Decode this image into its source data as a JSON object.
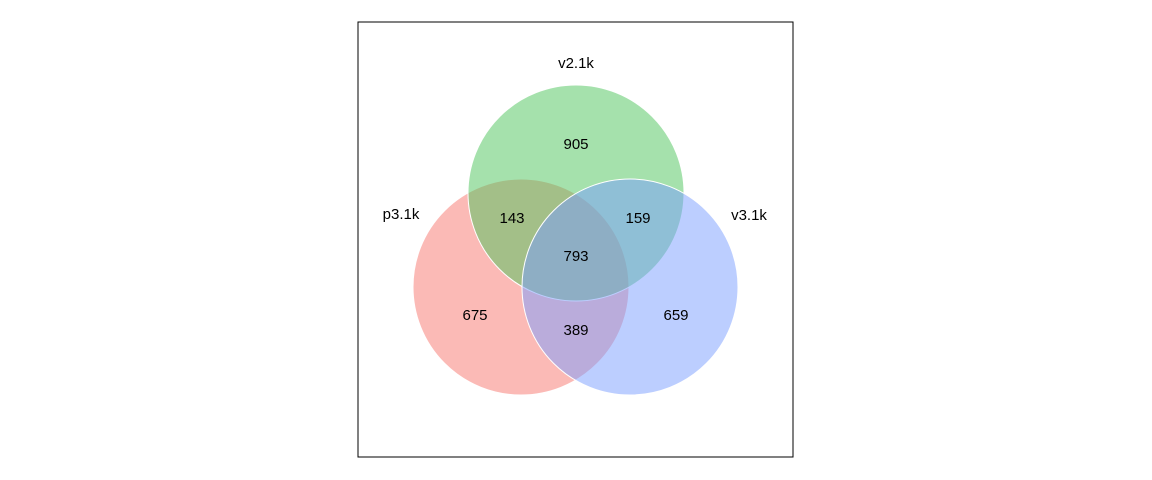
{
  "diagram": {
    "type": "venn-3",
    "sets": [
      {
        "id": "p",
        "label": "p3.1k",
        "color": "#F8766D"
      },
      {
        "id": "v2",
        "label": "v2.1k",
        "color": "#4CC35A"
      },
      {
        "id": "v3",
        "label": "v3.1k",
        "color": "#7A9EFF"
      }
    ],
    "counts": {
      "p_only": "675",
      "v2_only": "905",
      "v3_only": "659",
      "p_v2": "143",
      "v2_v3": "159",
      "p_v3": "389",
      "all": "793"
    },
    "fill_opacity": 0.5,
    "outline_color": "#ffffff",
    "frame": true
  }
}
